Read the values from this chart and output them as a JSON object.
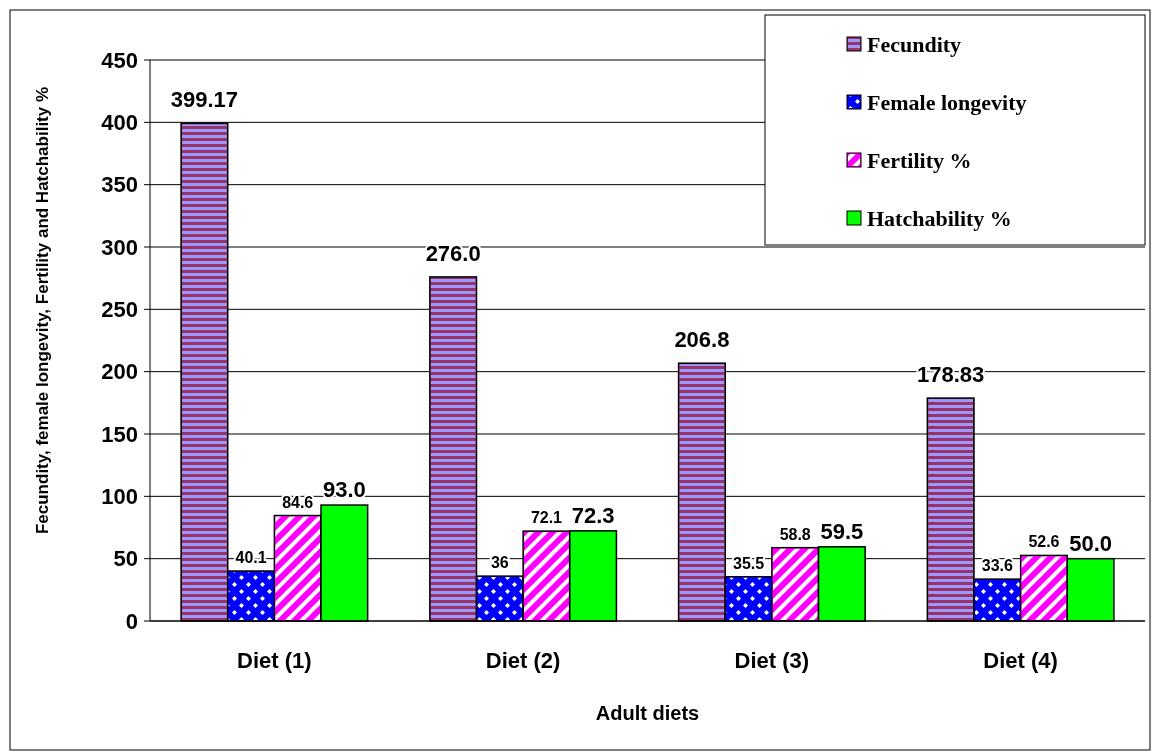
{
  "chart_data": {
    "type": "bar",
    "xlabel": "Adult diets",
    "ylabel": "Fecundity, female longevity, Fertility  and  Hatchability %",
    "categories": [
      "Diet (1)",
      "Diet (2)",
      "Diet (3)",
      "Diet (4)"
    ],
    "series": [
      {
        "name": "Fecundity",
        "color": "#993366",
        "values": [
          399.17,
          276.0,
          206.8,
          178.83
        ],
        "value_labels": [
          "399.17",
          "276.0",
          "206.8",
          "178.83"
        ]
      },
      {
        "name": "Female longevity",
        "color": "#0000ff",
        "values": [
          40.1,
          36,
          35.5,
          33.6
        ],
        "value_labels": [
          "40.1",
          "36",
          "35.5",
          "33.6"
        ]
      },
      {
        "name": "Fertility %",
        "color": "#ff00ff",
        "values": [
          84.6,
          72.1,
          58.8,
          52.6
        ],
        "value_labels": [
          "84.6",
          "72.1",
          "58.8",
          "52.6"
        ]
      },
      {
        "name": "Hatchability %",
        "color": "#00ff00",
        "values": [
          93.0,
          72.3,
          59.5,
          50.0
        ],
        "value_labels": [
          "93.0",
          "72.3",
          "59.5",
          "50.0"
        ]
      }
    ],
    "ylim": [
      0,
      450
    ],
    "yticks": [
      0,
      50,
      100,
      150,
      200,
      250,
      300,
      350,
      400,
      450
    ],
    "grid": "y",
    "legend": "top right"
  }
}
